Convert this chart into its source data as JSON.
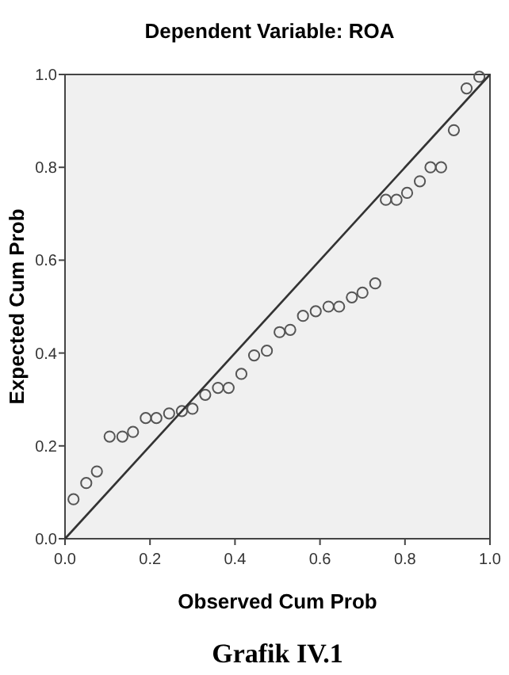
{
  "chart_data": {
    "type": "scatter",
    "title": "Dependent Variable: ROA",
    "xlabel": "Observed Cum Prob",
    "ylabel": "Expected Cum Prob",
    "annotations": [
      "Grafik IV.1"
    ],
    "xlim": [
      0,
      1
    ],
    "ylim": [
      0,
      1
    ],
    "xticks": [
      {
        "value": 0,
        "label": "0.0"
      },
      {
        "value": 0.2,
        "label": "0.2"
      },
      {
        "value": 0.4,
        "label": "0.4"
      },
      {
        "value": 0.6,
        "label": "0.6"
      },
      {
        "value": 0.8,
        "label": "0.8"
      },
      {
        "value": 1,
        "label": "1.0"
      }
    ],
    "yticks": [
      {
        "value": 0,
        "label": "0.0"
      },
      {
        "value": 0.2,
        "label": "0.2"
      },
      {
        "value": 0.4,
        "label": "0.4"
      },
      {
        "value": 0.6,
        "label": "0.6"
      },
      {
        "value": 0.8,
        "label": "0.8"
      },
      {
        "value": 1,
        "label": "1.0"
      }
    ],
    "grid": false,
    "marker": "circle",
    "series": [
      {
        "type": "scatter",
        "color": "#555555",
        "x": [
          0.02,
          0.05,
          0.075,
          0.105,
          0.135,
          0.16,
          0.19,
          0.215,
          0.245,
          0.275,
          0.3,
          0.33,
          0.36,
          0.385,
          0.415,
          0.445,
          0.475,
          0.505,
          0.53,
          0.56,
          0.59,
          0.62,
          0.645,
          0.675,
          0.7,
          0.73,
          0.755,
          0.78,
          0.805,
          0.835,
          0.86,
          0.885,
          0.915,
          0.945,
          0.975
        ],
        "values": [
          0.085,
          0.12,
          0.145,
          0.22,
          0.22,
          0.23,
          0.26,
          0.26,
          0.27,
          0.275,
          0.28,
          0.31,
          0.325,
          0.325,
          0.355,
          0.395,
          0.405,
          0.445,
          0.45,
          0.48,
          0.49,
          0.5,
          0.5,
          0.52,
          0.53,
          0.55,
          0.73,
          0.73,
          0.745,
          0.77,
          0.8,
          0.8,
          0.88,
          0.97,
          0.995
        ]
      },
      {
        "type": "line",
        "color": "#333333",
        "marker": "none",
        "x": [
          0,
          1
        ],
        "values": [
          0,
          1
        ]
      }
    ]
  }
}
